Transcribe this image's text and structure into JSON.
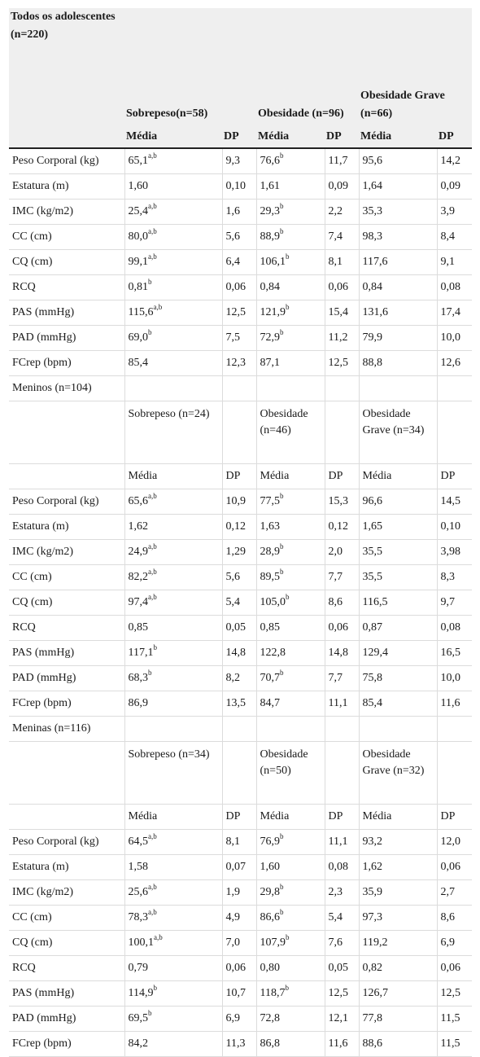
{
  "header": {
    "population": "Todos os adolescentes (n=220)",
    "groups": [
      "Sobrepeso(n=58)",
      "Obesidade (n=96)",
      "Obesidade Grave (n=66)"
    ],
    "mean_label": "Média",
    "sd_label": "DP"
  },
  "sections": [
    {
      "rows": [
        {
          "label": "Peso Corporal (kg)",
          "cells": [
            [
              "65,1",
              "a,b"
            ],
            [
              "9,3",
              ""
            ],
            [
              "76,6",
              "b"
            ],
            [
              "11,7",
              ""
            ],
            [
              "95,6",
              ""
            ],
            [
              "14,2",
              ""
            ]
          ]
        },
        {
          "label": "Estatura (m)",
          "cells": [
            [
              "1,60",
              ""
            ],
            [
              "0,10",
              ""
            ],
            [
              "1,61",
              ""
            ],
            [
              "0,09",
              ""
            ],
            [
              "1,64",
              ""
            ],
            [
              "0,09",
              ""
            ]
          ]
        },
        {
          "label": "IMC (kg/m2)",
          "cells": [
            [
              "25,4",
              "a,b"
            ],
            [
              "1,6",
              ""
            ],
            [
              "29,3",
              "b"
            ],
            [
              "2,2",
              ""
            ],
            [
              "35,3",
              ""
            ],
            [
              "3,9",
              ""
            ]
          ]
        },
        {
          "label": "CC (cm)",
          "cells": [
            [
              "80,0",
              "a,b"
            ],
            [
              "5,6",
              ""
            ],
            [
              "88,9",
              "b"
            ],
            [
              "7,4",
              ""
            ],
            [
              "98,3",
              ""
            ],
            [
              "8,4",
              ""
            ]
          ]
        },
        {
          "label": "CQ (cm)",
          "cells": [
            [
              "99,1",
              "a,b"
            ],
            [
              "6,4",
              ""
            ],
            [
              "106,1",
              "b"
            ],
            [
              "8,1",
              ""
            ],
            [
              "117,6",
              ""
            ],
            [
              "9,1",
              ""
            ]
          ]
        },
        {
          "label": "RCQ",
          "cells": [
            [
              "0,81",
              "b"
            ],
            [
              "0,06",
              ""
            ],
            [
              "0,84",
              ""
            ],
            [
              "0,06",
              ""
            ],
            [
              "0,84",
              ""
            ],
            [
              "0,08",
              ""
            ]
          ]
        },
        {
          "label": "PAS (mmHg)",
          "cells": [
            [
              "115,6",
              "a,b"
            ],
            [
              "12,5",
              ""
            ],
            [
              "121,9",
              "b"
            ],
            [
              "15,4",
              ""
            ],
            [
              "131,6",
              ""
            ],
            [
              "17,4",
              ""
            ]
          ]
        },
        {
          "label": "PAD (mmHg)",
          "cells": [
            [
              "69,0",
              "b"
            ],
            [
              "7,5",
              ""
            ],
            [
              "72,9",
              "b"
            ],
            [
              "11,2",
              ""
            ],
            [
              "79,9",
              ""
            ],
            [
              "10,0",
              ""
            ]
          ]
        },
        {
          "label": "FCrep (bpm)",
          "cells": [
            [
              "85,4",
              ""
            ],
            [
              "12,3",
              ""
            ],
            [
              "87,1",
              ""
            ],
            [
              "12,5",
              ""
            ],
            [
              "88,8",
              ""
            ],
            [
              "12,6",
              ""
            ]
          ]
        }
      ]
    },
    {
      "title": "Meninos (n=104)",
      "groups": [
        "Sobrepeso (n=24)",
        "Obesidade (n=46)",
        "Obesidade Grave (n=34)"
      ],
      "mean_label": "Média",
      "sd_label": "DP",
      "rows": [
        {
          "label": "Peso Corporal (kg)",
          "cells": [
            [
              "65,6",
              "a,b"
            ],
            [
              "10,9",
              ""
            ],
            [
              "77,5",
              "b"
            ],
            [
              "15,3",
              ""
            ],
            [
              "96,6",
              ""
            ],
            [
              "14,5",
              ""
            ]
          ]
        },
        {
          "label": "Estatura (m)",
          "cells": [
            [
              "1,62",
              ""
            ],
            [
              "0,12",
              ""
            ],
            [
              "1,63",
              ""
            ],
            [
              "0,12",
              ""
            ],
            [
              "1,65",
              ""
            ],
            [
              "0,10",
              ""
            ]
          ]
        },
        {
          "label": "IMC (kg/m2)",
          "cells": [
            [
              "24,9",
              "a,b"
            ],
            [
              "1,29",
              ""
            ],
            [
              "28,9",
              "b"
            ],
            [
              "2,0",
              ""
            ],
            [
              "35,5",
              ""
            ],
            [
              "3,98",
              ""
            ]
          ]
        },
        {
          "label": "CC (cm)",
          "cells": [
            [
              "82,2",
              "a,b"
            ],
            [
              "5,6",
              ""
            ],
            [
              "89,5",
              "b"
            ],
            [
              "7,7",
              ""
            ],
            [
              "35,5",
              ""
            ],
            [
              "8,3",
              ""
            ]
          ]
        },
        {
          "label": "CQ (cm)",
          "cells": [
            [
              "97,4",
              "a,b"
            ],
            [
              "5,4",
              ""
            ],
            [
              "105,0",
              "b"
            ],
            [
              "8,6",
              ""
            ],
            [
              "116,5",
              ""
            ],
            [
              "9,7",
              ""
            ]
          ]
        },
        {
          "label": "RCQ",
          "cells": [
            [
              "0,85",
              ""
            ],
            [
              "0,05",
              ""
            ],
            [
              "0,85",
              ""
            ],
            [
              "0,06",
              ""
            ],
            [
              "0,87",
              ""
            ],
            [
              "0,08",
              ""
            ]
          ]
        },
        {
          "label": "PAS (mmHg)",
          "cells": [
            [
              "117,1",
              "b"
            ],
            [
              "14,8",
              ""
            ],
            [
              "122,8",
              ""
            ],
            [
              "14,8",
              ""
            ],
            [
              "129,4",
              ""
            ],
            [
              "16,5",
              ""
            ]
          ]
        },
        {
          "label": "PAD (mmHg)",
          "cells": [
            [
              "68,3",
              "b"
            ],
            [
              "8,2",
              ""
            ],
            [
              "70,7",
              "b"
            ],
            [
              "7,7",
              ""
            ],
            [
              "75,8",
              ""
            ],
            [
              "10,0",
              ""
            ]
          ]
        },
        {
          "label": "FCrep (bpm)",
          "cells": [
            [
              "86,9",
              ""
            ],
            [
              "13,5",
              ""
            ],
            [
              "84,7",
              ""
            ],
            [
              "11,1",
              ""
            ],
            [
              "85,4",
              ""
            ],
            [
              "11,6",
              ""
            ]
          ]
        }
      ]
    },
    {
      "title": "Meninas (n=116)",
      "groups": [
        "Sobrepeso (n=34)",
        "Obesidade (n=50)",
        "Obesidade Grave (n=32)"
      ],
      "mean_label": "Média",
      "sd_label": "DP",
      "rows": [
        {
          "label": "Peso Corporal (kg)",
          "cells": [
            [
              "64,5",
              "a,b"
            ],
            [
              "8,1",
              ""
            ],
            [
              "76,9",
              "b"
            ],
            [
              "11,1",
              ""
            ],
            [
              "93,2",
              ""
            ],
            [
              "12,0",
              ""
            ]
          ]
        },
        {
          "label": "Estatura (m)",
          "cells": [
            [
              "1,58",
              ""
            ],
            [
              "0,07",
              ""
            ],
            [
              "1,60",
              ""
            ],
            [
              "0,08",
              ""
            ],
            [
              "1,62",
              ""
            ],
            [
              "0,06",
              ""
            ]
          ]
        },
        {
          "label": "IMC (kg/m2)",
          "cells": [
            [
              "25,6",
              "a,b"
            ],
            [
              "1,9",
              ""
            ],
            [
              "29,8",
              "b"
            ],
            [
              "2,3",
              ""
            ],
            [
              "35,9",
              ""
            ],
            [
              "2,7",
              ""
            ]
          ]
        },
        {
          "label": "CC (cm)",
          "cells": [
            [
              "78,3",
              "a,b"
            ],
            [
              "4,9",
              ""
            ],
            [
              "86,6",
              "b"
            ],
            [
              "5,4",
              ""
            ],
            [
              "97,3",
              ""
            ],
            [
              "8,6",
              ""
            ]
          ]
        },
        {
          "label": "CQ (cm)",
          "cells": [
            [
              "100,1",
              "a,b"
            ],
            [
              "7,0",
              ""
            ],
            [
              "107,9",
              "b"
            ],
            [
              "7,6",
              ""
            ],
            [
              "119,2",
              ""
            ],
            [
              "6,9",
              ""
            ]
          ]
        },
        {
          "label": "RCQ",
          "cells": [
            [
              "0,79",
              ""
            ],
            [
              "0,06",
              ""
            ],
            [
              "0,80",
              ""
            ],
            [
              "0,05",
              ""
            ],
            [
              "0,82",
              ""
            ],
            [
              "0,06",
              ""
            ]
          ]
        },
        {
          "label": "PAS (mmHg)",
          "cells": [
            [
              "114,9",
              "b"
            ],
            [
              "10,7",
              ""
            ],
            [
              "118,7",
              "b"
            ],
            [
              "12,5",
              ""
            ],
            [
              "126,7",
              ""
            ],
            [
              "12,5",
              ""
            ]
          ]
        },
        {
          "label": "PAD (mmHg)",
          "cells": [
            [
              "69,5",
              "b"
            ],
            [
              "6,9",
              ""
            ],
            [
              "72,8",
              ""
            ],
            [
              "12,1",
              ""
            ],
            [
              "77,8",
              ""
            ],
            [
              "11,5",
              ""
            ]
          ]
        },
        {
          "label": "FCrep (bpm)",
          "cells": [
            [
              "84,2",
              ""
            ],
            [
              "11,3",
              ""
            ],
            [
              "86,8",
              ""
            ],
            [
              "11,6",
              ""
            ],
            [
              "88,6",
              ""
            ],
            [
              "11,5",
              ""
            ]
          ]
        }
      ]
    }
  ]
}
